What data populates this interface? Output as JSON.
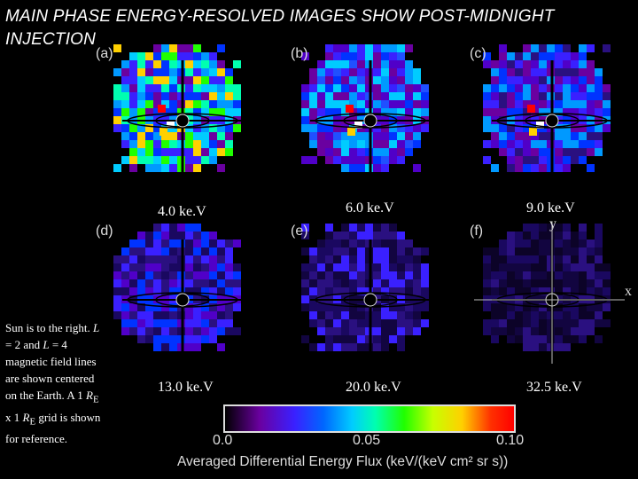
{
  "title": "MAIN PHASE ENERGY-RESOLVED IMAGES SHOW POST-MIDNIGHT INJECTION",
  "panels": [
    {
      "label": "(a)",
      "energy": "4.0 ke.V"
    },
    {
      "label": "(b)",
      "energy": "6.0 ke.V"
    },
    {
      "label": "(c)",
      "energy": "9.0 ke.V"
    },
    {
      "label": "(d)",
      "energy": "13.0 ke.V"
    },
    {
      "label": "(e)",
      "energy": "20.0 ke.V"
    },
    {
      "label": "(f)",
      "energy": "32.5 ke.V"
    }
  ],
  "axes": {
    "y": "y",
    "x": "x"
  },
  "note": {
    "line1": "Sun is to the right.",
    "L1": "L",
    "t2": " = 2 and",
    "L2": "L",
    "t3": " = 4 magnetic field lines are shown centered on the Earth. A 1",
    "RE1": "R",
    "E1": "E",
    "t4": " x 1",
    "RE2": "R",
    "E2": "E",
    "t5": " grid is shown for reference."
  },
  "colorbar": {
    "ticks": [
      "0.0",
      "0.05",
      "0.10"
    ],
    "title": "Averaged Differential Energy Flux (keV/(keV cm² sr s))",
    "colors": [
      "#000000",
      "#6a00a0",
      "#3a20ff",
      "#0066ff",
      "#00ccff",
      "#00ffb0",
      "#20ff00",
      "#c8ff00",
      "#ffd000",
      "#ff3000",
      "#ff0000"
    ]
  }
}
